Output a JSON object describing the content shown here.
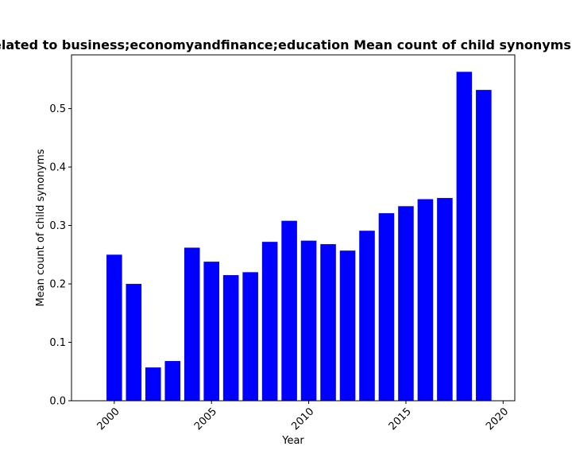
{
  "chart_data": {
    "type": "bar",
    "title": "Related to business;economyandfinance;education Mean count of child synonyms in",
    "xlabel": "Year",
    "ylabel": "Mean count of child synonyms",
    "x": [
      2000,
      2001,
      2002,
      2003,
      2004,
      2005,
      2006,
      2007,
      2008,
      2009,
      2010,
      2011,
      2012,
      2013,
      2014,
      2015,
      2016,
      2017,
      2018,
      2019
    ],
    "values": [
      0.25,
      0.2,
      0.057,
      0.068,
      0.262,
      0.238,
      0.215,
      0.22,
      0.272,
      0.308,
      0.274,
      0.268,
      0.257,
      0.291,
      0.321,
      0.333,
      0.345,
      0.347,
      0.563,
      0.532
    ],
    "xlim": [
      1997.8,
      2020.6
    ],
    "ylim": [
      0,
      0.592
    ],
    "xticks": [
      "2000",
      "2005",
      "2010",
      "2015",
      "2020"
    ],
    "yticks": [
      "0.0",
      "0.1",
      "0.2",
      "0.3",
      "0.4",
      "0.5"
    ],
    "bar_color": "#0000ff",
    "grid": false
  }
}
